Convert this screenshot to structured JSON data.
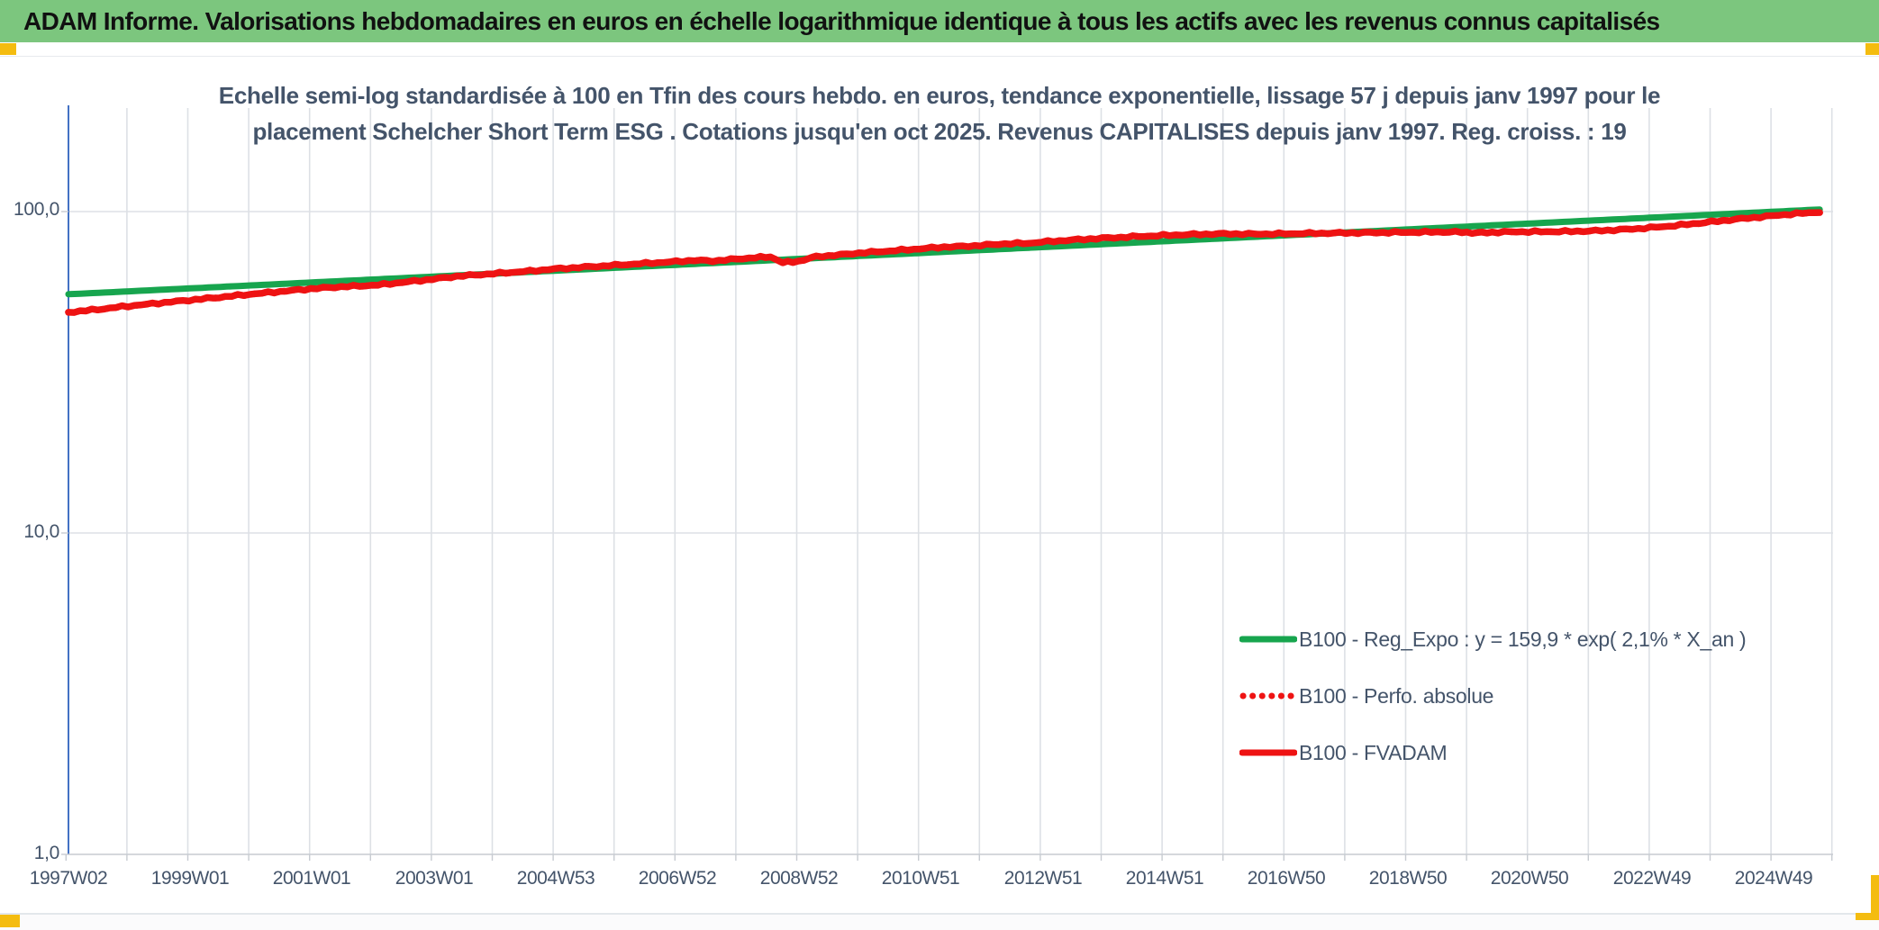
{
  "header": {
    "title": "ADAM Informe. Valorisations hebdomadaires en euros en échelle logarithmique identique à tous les actifs avec les revenus connus capitalisés"
  },
  "chart_data": {
    "type": "line",
    "title_lines": [
      "Echelle semi-log standardisée à 100 en Tfin des cours hebdo. en euros, tendance exponentielle, lissage 57 j depuis janv 1997 pour le",
      "placement Schelcher Short Term ESG . Cotations jusqu'en oct 2025. Revenus CAPITALISES depuis janv 1997. Reg. croiss. : 19"
    ],
    "xlabel": "",
    "ylabel": "",
    "y_axis": {
      "scale": "log",
      "tick_labels": [
        "100,0",
        "10,0",
        "1,0"
      ],
      "tick_values": [
        100,
        10,
        1
      ],
      "range": [
        1,
        210
      ]
    },
    "x_axis": {
      "tick_labels": [
        "1997W02",
        "1999W01",
        "2001W01",
        "2003W01",
        "2004W53",
        "2006W52",
        "2008W52",
        "2010W51",
        "2012W51",
        "2014W51",
        "2016W50",
        "2018W50",
        "2020W50",
        "2022W49",
        "2024W49"
      ],
      "range_years": [
        1997.02,
        2026.0
      ],
      "gridlines": "yearly"
    },
    "grid": true,
    "legend_position": "center-right",
    "legend": [
      {
        "label": "B100 - Reg_Expo : y = 159,9 * exp( 2,1% *  X_an )",
        "color_key": "green",
        "style": "solid"
      },
      {
        "label": "B100 - Perfo. absolue",
        "color_key": "red",
        "style": "dotted"
      },
      {
        "label": "B100 - FVADAM",
        "color_key": "red",
        "style": "solid"
      }
    ],
    "colors": {
      "green": "#17A54E",
      "red": "#EE1313",
      "grid": "#DDE0E5",
      "axis_blue": "#4472C4",
      "axis_gray": "#C7CBD1",
      "text": "#44546A",
      "header_green": "#7CC67E",
      "accent_amber": "#F4BC10"
    },
    "series": [
      {
        "name": "B100 - Reg_Expo : y = 159,9 * exp( 2,1% *  X_an )",
        "style": "solid",
        "color_key": "green",
        "formula": "y = 159,9 * exp( 2,1% * X_an )",
        "points": [
          [
            1997.02,
            55.3
          ],
          [
            2025.78,
            101.5
          ]
        ]
      },
      {
        "name": "B100 - Perfo. absolue",
        "style": "dotted",
        "color_key": "red",
        "note": "coincides visually with B100 - FVADAM (plotted on top of it)",
        "points_ref": "B100 - FVADAM"
      },
      {
        "name": "B100 - FVADAM",
        "style": "solid",
        "color_key": "red",
        "points": [
          [
            1997.02,
            48.6
          ],
          [
            1997.5,
            49.6
          ],
          [
            1998.0,
            50.8
          ],
          [
            1998.5,
            51.9
          ],
          [
            1999.0,
            53.0
          ],
          [
            1999.5,
            54.1
          ],
          [
            2000.0,
            55.3
          ],
          [
            2000.5,
            56.4
          ],
          [
            2001.0,
            57.5
          ],
          [
            2001.4,
            58.2
          ],
          [
            2001.8,
            58.7
          ],
          [
            2002.1,
            59.1
          ],
          [
            2002.5,
            60.2
          ],
          [
            2003.0,
            61.6
          ],
          [
            2003.4,
            62.9
          ],
          [
            2003.8,
            63.7
          ],
          [
            2004.2,
            64.5
          ],
          [
            2004.6,
            65.3
          ],
          [
            2005.0,
            66.3
          ],
          [
            2005.5,
            67.2
          ],
          [
            2006.0,
            68.1
          ],
          [
            2006.5,
            69.0
          ],
          [
            2007.0,
            69.9
          ],
          [
            2007.3,
            70.5
          ],
          [
            2007.6,
            70.2
          ],
          [
            2008.0,
            71.2
          ],
          [
            2008.3,
            71.9
          ],
          [
            2008.55,
            72.3
          ],
          [
            2008.75,
            69.4
          ],
          [
            2009.0,
            70.0
          ],
          [
            2009.3,
            72.4
          ],
          [
            2009.7,
            73.4
          ],
          [
            2010.0,
            74.3
          ],
          [
            2010.5,
            75.4
          ],
          [
            2011.0,
            76.6
          ],
          [
            2011.4,
            77.6
          ],
          [
            2011.7,
            77.9
          ],
          [
            2012.0,
            78.5
          ],
          [
            2012.4,
            79.4
          ],
          [
            2012.8,
            79.7
          ],
          [
            2013.0,
            80.4
          ],
          [
            2013.5,
            81.6
          ],
          [
            2014.0,
            82.6
          ],
          [
            2014.5,
            83.5
          ],
          [
            2015.0,
            84.3
          ],
          [
            2015.5,
            84.9
          ],
          [
            2016.0,
            85.3
          ],
          [
            2016.5,
            85.1
          ],
          [
            2017.0,
            85.3
          ],
          [
            2017.5,
            85.6
          ],
          [
            2018.0,
            85.8
          ],
          [
            2018.5,
            86.0
          ],
          [
            2019.0,
            86.2
          ],
          [
            2019.5,
            86.4
          ],
          [
            2019.9,
            86.3
          ],
          [
            2020.15,
            85.8
          ],
          [
            2020.4,
            86.2
          ],
          [
            2020.8,
            86.5
          ],
          [
            2021.2,
            86.6
          ],
          [
            2021.6,
            86.7
          ],
          [
            2022.0,
            87.0
          ],
          [
            2022.4,
            87.6
          ],
          [
            2022.8,
            88.5
          ],
          [
            2023.2,
            89.7
          ],
          [
            2023.6,
            91.2
          ],
          [
            2024.0,
            92.9
          ],
          [
            2024.4,
            94.6
          ],
          [
            2024.8,
            96.2
          ],
          [
            2025.2,
            97.8
          ],
          [
            2025.5,
            98.8
          ],
          [
            2025.78,
            99.7
          ]
        ]
      }
    ]
  }
}
